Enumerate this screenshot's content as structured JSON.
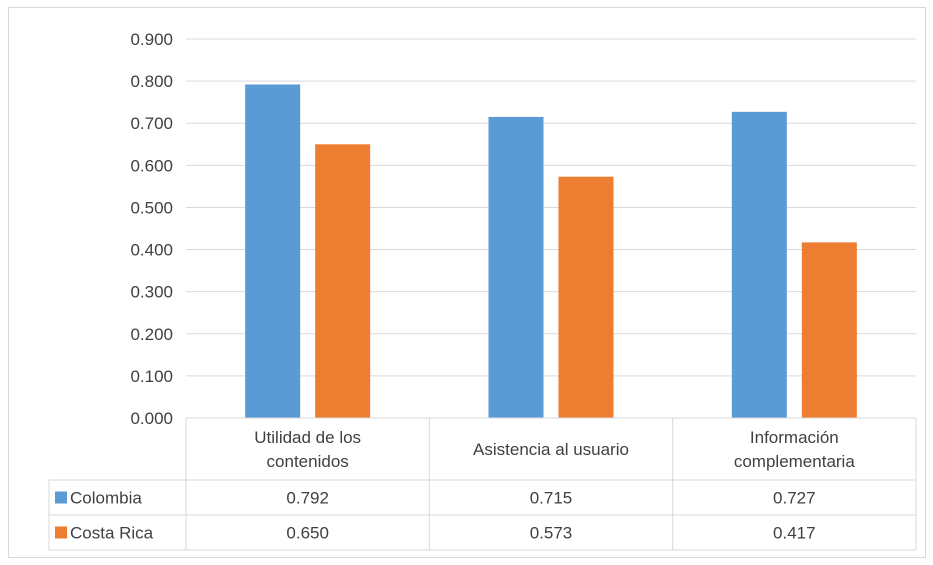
{
  "chart_data": {
    "type": "bar",
    "title": "",
    "xlabel": "",
    "ylabel": "",
    "categories": [
      [
        "Utilidad de los",
        "contenidos"
      ],
      [
        "Asistencia al usuario"
      ],
      [
        "Información",
        "complementaria"
      ]
    ],
    "series": [
      {
        "name": "Colombia",
        "color": "#5b9bd5",
        "values": [
          0.792,
          0.715,
          0.727
        ],
        "table_values": [
          "0.792",
          "0.715",
          "0.727"
        ]
      },
      {
        "name": "Costa Rica",
        "color": "#ed7d31",
        "values": [
          0.65,
          0.573,
          0.417
        ],
        "table_values": [
          "0.650",
          "0.573",
          "0.417"
        ]
      }
    ],
    "ylim": [
      0,
      0.9
    ],
    "yticks": [
      "0.000",
      "0.100",
      "0.200",
      "0.300",
      "0.400",
      "0.500",
      "0.600",
      "0.700",
      "0.800",
      "0.900"
    ],
    "grid": true,
    "legend": "data-table",
    "data_table": true
  }
}
